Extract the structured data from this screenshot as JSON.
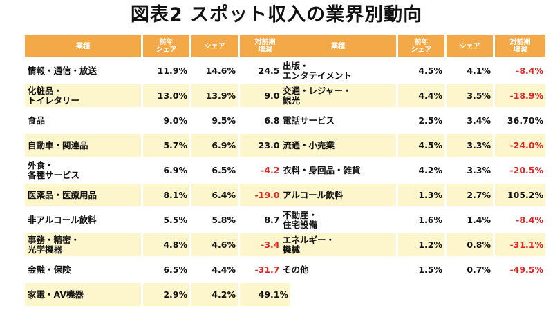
{
  "title": "図表2  スポット収入の業界別動向",
  "headers": {
    "industry": "業種",
    "prev_share": "前年\nシェア",
    "share": "シェア",
    "yoy": "対前期\n増減"
  },
  "left_rows": [
    {
      "name": "情報・通信・放送",
      "prev": "11.9%",
      "share": "14.6%",
      "yoy": "24.5%",
      "neg": false
    },
    {
      "name": "化粧品・\nトイレタリー",
      "prev": "13.0%",
      "share": "13.9%",
      "yoy": "9.0%",
      "neg": false
    },
    {
      "name": "食品",
      "prev": "9.0%",
      "share": "9.5%",
      "yoy": "6.8%",
      "neg": false
    },
    {
      "name": "自動車・関連品",
      "prev": "5.7%",
      "share": "6.9%",
      "yoy": "23.0%",
      "neg": false
    },
    {
      "name": "外食・\n各種サービス",
      "prev": "6.9%",
      "share": "6.5%",
      "yoy": "-4.2%",
      "neg": true
    },
    {
      "name": "医薬品・医療用品",
      "prev": "8.1%",
      "share": "6.4%",
      "yoy": "-19.0%",
      "neg": true
    },
    {
      "name": "非アルコール飲料",
      "prev": "5.5%",
      "share": "5.8%",
      "yoy": "8.7%",
      "neg": false
    },
    {
      "name": "事務・精密・\n光学機器",
      "prev": "4.8%",
      "share": "4.6%",
      "yoy": "-3.4%",
      "neg": true
    },
    {
      "name": "金融・保険",
      "prev": "6.5%",
      "share": "4.4%",
      "yoy": "-31.7%",
      "neg": true
    },
    {
      "name": "家電・AV機器",
      "prev": "2.9%",
      "share": "4.2%",
      "yoy": "49.1%",
      "neg": false
    }
  ],
  "right_rows": [
    {
      "name": "出版・\nエンタテイメント",
      "prev": "4.5%",
      "share": "4.1%",
      "yoy": "-8.4%",
      "neg": true
    },
    {
      "name": "交通・レジャー・\n観光",
      "prev": "4.4%",
      "share": "3.5%",
      "yoy": "-18.9%",
      "neg": true
    },
    {
      "name": "電話サービス",
      "prev": "2.5%",
      "share": "3.4%",
      "yoy": "36.70%",
      "neg": false
    },
    {
      "name": "流通・小売業",
      "prev": "4.5%",
      "share": "3.3%",
      "yoy": "-24.0%",
      "neg": true
    },
    {
      "name": "衣料・身回品・雑貨",
      "prev": "4.2%",
      "share": "3.3%",
      "yoy": "-20.5%",
      "neg": true
    },
    {
      "name": "アルコール飲料",
      "prev": "1.3%",
      "share": "2.7%",
      "yoy": "105.2%",
      "neg": false
    },
    {
      "name": "不動産・\n住宅設備",
      "prev": "1.6%",
      "share": "1.4%",
      "yoy": "-8.4%",
      "neg": true
    },
    {
      "name": "エネルギー・\n機械",
      "prev": "1.2%",
      "share": "0.8%",
      "yoy": "-31.1%",
      "neg": true
    },
    {
      "name": "その他",
      "prev": "1.5%",
      "share": "0.7%",
      "yoy": "-49.5%",
      "neg": true
    }
  ],
  "colors": {
    "header_bg": "#f4a948",
    "highlight_row_bg": "#fdf5cc",
    "negative_text": "#e02525"
  }
}
